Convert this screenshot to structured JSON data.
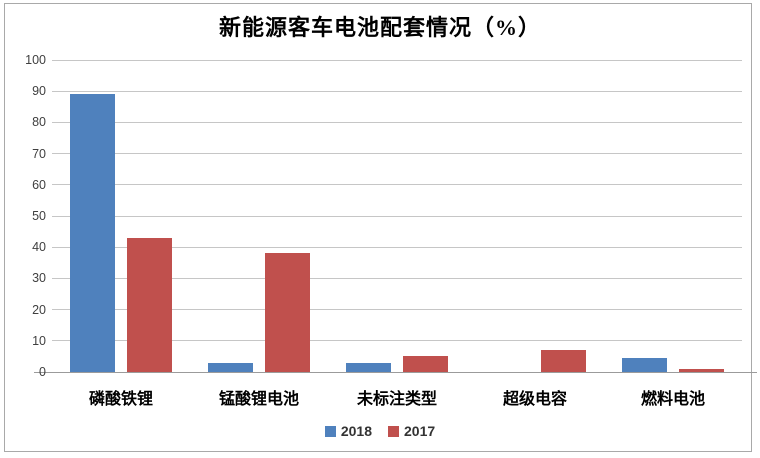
{
  "title": "新能源客车电池配套情况（%）",
  "colors": {
    "series_2018": "#4F81BD",
    "series_2017": "#C0504D",
    "gridline": "#c6c6c6",
    "baseline": "#9b9b9b",
    "axis_label": "#3f3f3f",
    "frame_border": "#a9a9a9",
    "background": "#ffffff"
  },
  "chart_data": {
    "type": "bar",
    "title": "新能源客车电池配套情况（%）",
    "categories": [
      "磷酸铁锂",
      "锰酸锂电池",
      "未标注类型",
      "超级电容",
      "燃料电池"
    ],
    "series": [
      {
        "name": "2018",
        "color": "#4F81BD",
        "values": [
          89,
          3,
          3,
          0,
          4.5
        ]
      },
      {
        "name": "2017",
        "color": "#C0504D",
        "values": [
          43,
          38,
          5,
          7,
          1
        ]
      }
    ],
    "xlabel": "",
    "ylabel": "",
    "ylim": [
      0,
      100
    ],
    "yticks": [
      0,
      10,
      20,
      30,
      40,
      50,
      60,
      70,
      80,
      90,
      100
    ],
    "grid": true,
    "legend_position": "bottom"
  },
  "legend": {
    "items": [
      {
        "label": "2018",
        "color": "#4F81BD"
      },
      {
        "label": "2017",
        "color": "#C0504D"
      }
    ]
  }
}
